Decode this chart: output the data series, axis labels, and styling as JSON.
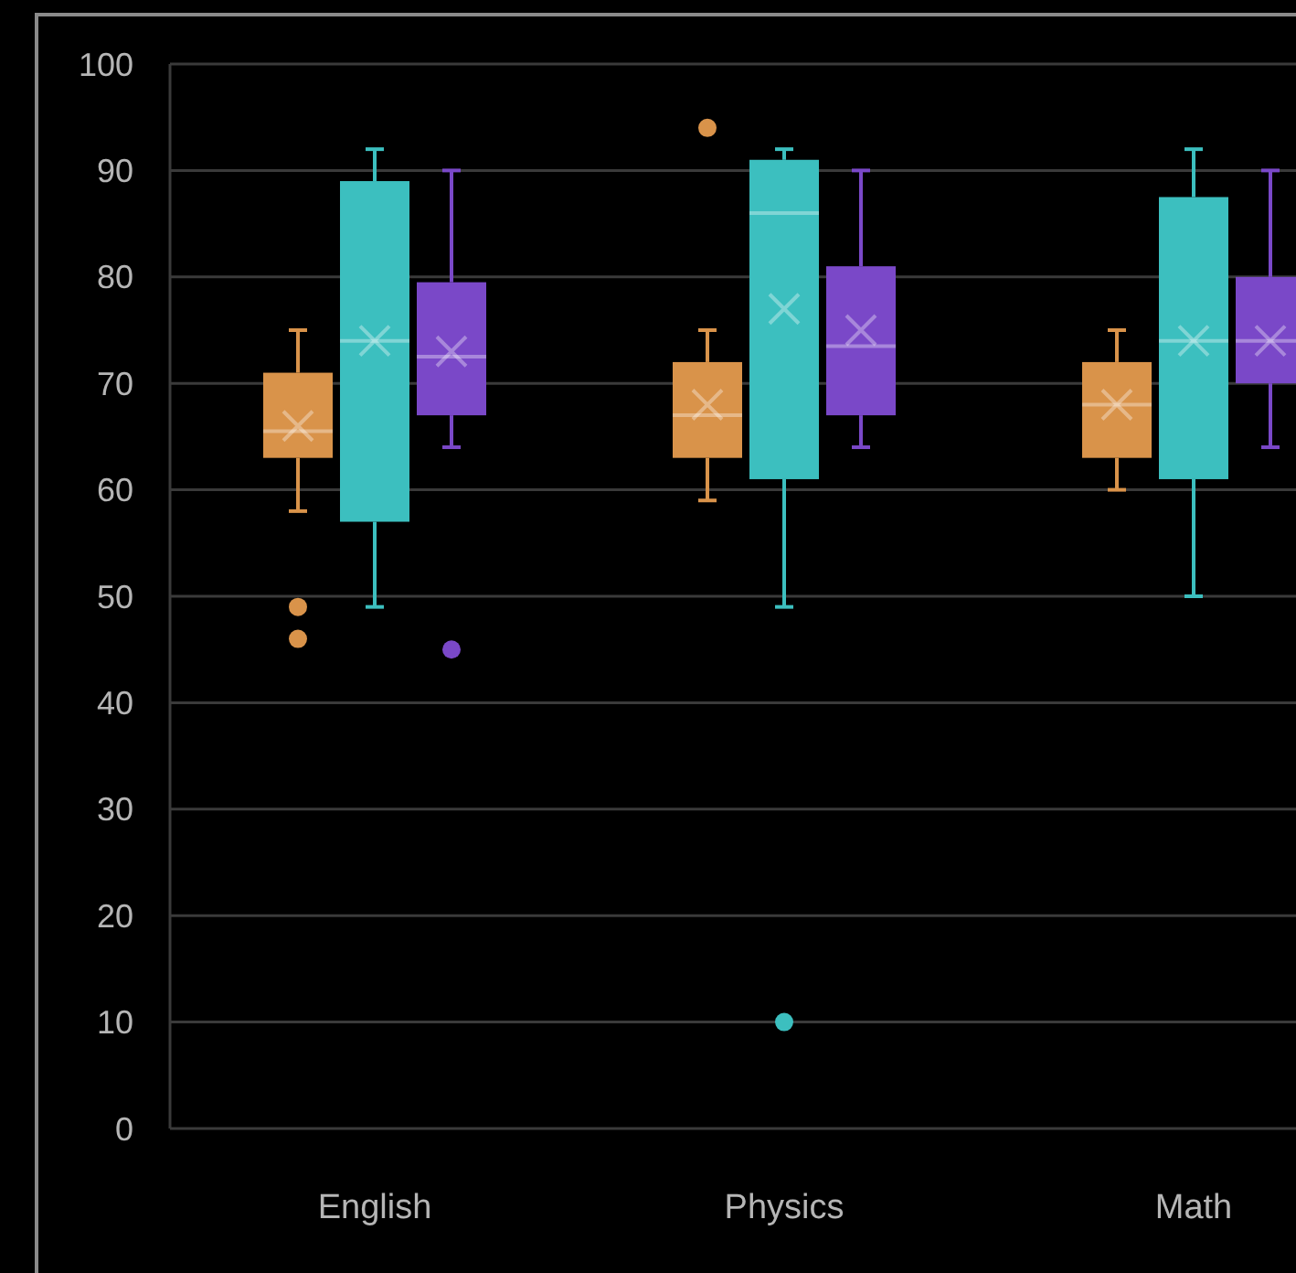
{
  "chart_data": {
    "type": "box",
    "categories": [
      "English",
      "Physics",
      "Math"
    ],
    "ylim": [
      0,
      100
    ],
    "yticks": [
      0,
      10,
      20,
      30,
      40,
      50,
      60,
      70,
      80,
      90,
      100
    ],
    "grid": "y",
    "marker": "circle",
    "series": [
      {
        "color": "#d9934a",
        "boxes": [
          {
            "low": 58,
            "q1": 63,
            "median": 65.5,
            "q3": 71,
            "high": 75,
            "mean": 66,
            "outliers": [
              49,
              46
            ]
          },
          {
            "low": 59,
            "q1": 63,
            "median": 67,
            "q3": 72,
            "high": 75,
            "mean": 68,
            "outliers": [
              94
            ]
          },
          {
            "low": 60,
            "q1": 63,
            "median": 68,
            "q3": 72,
            "high": 75,
            "mean": 68
          }
        ]
      },
      {
        "color": "#3cbfbf",
        "boxes": [
          {
            "low": 49,
            "q1": 57,
            "median": 74,
            "q3": 89,
            "high": 92,
            "mean": 74
          },
          {
            "low": 49,
            "q1": 61,
            "median": 86,
            "q3": 91,
            "high": 92,
            "mean": 77,
            "outliers": [
              10
            ]
          },
          {
            "low": 50,
            "q1": 61,
            "median": 74,
            "q3": 87.5,
            "high": 92,
            "mean": 74
          }
        ]
      },
      {
        "color": "#7a48c8",
        "boxes": [
          {
            "low": 64,
            "q1": 67,
            "median": 72.5,
            "q3": 79.5,
            "high": 90,
            "mean": 73,
            "outliers": [
              45
            ]
          },
          {
            "low": 64,
            "q1": 67,
            "median": 73.5,
            "q3": 81,
            "high": 90,
            "mean": 75
          },
          {
            "low": 64,
            "q1": 70,
            "median": 74,
            "q3": 80,
            "high": 90,
            "mean": 74
          }
        ]
      }
    ]
  }
}
